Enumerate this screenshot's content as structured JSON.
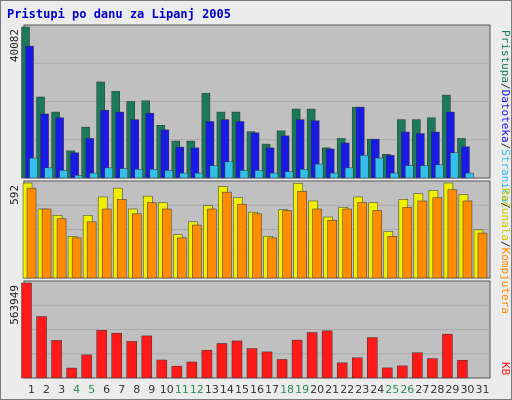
{
  "title": "Pristupi po danu za Lipanj 2005",
  "colors": {
    "panel_bg": "#c0c0c0",
    "gridline": "#a9a9a9",
    "pristupa": "#1a7a5a",
    "datoteka": "#1a1ae6",
    "stranica": "#33c0e8",
    "racunala": "#f0f000",
    "kompjutera": "#ff8c00",
    "kb": "#ff1a1a",
    "day_normal": "#333333",
    "day_weekend": "#2e8b57"
  },
  "right_labels": {
    "top": [
      "Pristupa",
      "/",
      "Datoteka",
      "/",
      "Stranica",
      "/"
    ],
    "top_colors": [
      "#1a7a5a",
      "#333333",
      "#1a1ae6",
      "#333333",
      "#33c0e8",
      "#333333"
    ],
    "mid": [
      "Računala",
      "/",
      "Kompjutera"
    ],
    "mid_colors": [
      "#c8c800",
      "#333333",
      "#ff8c00"
    ],
    "bottom": [
      "KB"
    ],
    "bottom_colors": [
      "#ff1a1a"
    ]
  },
  "chart_data": {
    "type": "bar",
    "title": "Pristupi po danu za Lipanj 2005",
    "categories": [
      "1",
      "2",
      "3",
      "4",
      "5",
      "6",
      "7",
      "8",
      "9",
      "10",
      "11",
      "12",
      "13",
      "14",
      "15",
      "16",
      "17",
      "18",
      "19",
      "20",
      "21",
      "22",
      "23",
      "24",
      "25",
      "26",
      "27",
      "28",
      "29",
      "30",
      "31"
    ],
    "weekend_days": [
      "4",
      "5",
      "11",
      "12",
      "18",
      "19",
      "25",
      "26"
    ],
    "panels": [
      {
        "ymax_label": "40082",
        "ylim": [
          0,
          40082
        ],
        "series": [
          {
            "name": "Pristupa",
            "values": [
              40082,
              21500,
              17500,
              7200,
              13500,
              25500,
              23000,
              20300,
              20500,
              14000,
              9800,
              9800,
              22500,
              17500,
              17500,
              12300,
              9000,
              12500,
              18300,
              18300,
              8000,
              10500,
              18800,
              10300,
              6300,
              15500,
              15500,
              16000,
              22000,
              10500,
              0
            ]
          },
          {
            "name": "Datoteka",
            "values": [
              35000,
              17000,
              16000,
              6700,
              10500,
              18000,
              17500,
              15500,
              17200,
              12800,
              8200,
              8000,
              15000,
              15500,
              15000,
              12000,
              8000,
              11200,
              15500,
              15200,
              7700,
              9300,
              18800,
              10300,
              6000,
              12200,
              11800,
              12200,
              17500,
              8300,
              0
            ]
          },
          {
            "name": "Stranica",
            "values": [
              5300,
              2700,
              2000,
              700,
              1300,
              2700,
              2500,
              2300,
              2300,
              2000,
              1300,
              1300,
              3300,
              4300,
              2000,
              2000,
              1300,
              1700,
              2300,
              3700,
              1300,
              2700,
              6000,
              5300,
              1300,
              3300,
              3300,
              3500,
              6700,
              1300,
              0
            ]
          }
        ]
      },
      {
        "ymax_label": "592",
        "ylim": [
          0,
          592
        ],
        "series": [
          {
            "name": "Računala",
            "values": [
              592,
              430,
              390,
              260,
              390,
              505,
              560,
              430,
              510,
              470,
              270,
              350,
              450,
              570,
              500,
              410,
              260,
              425,
              590,
              480,
              380,
              440,
              505,
              470,
              290,
              490,
              525,
              545,
              592,
              520,
              300
            ]
          },
          {
            "name": "Kompjutera",
            "values": [
              560,
              430,
              370,
              250,
              350,
              430,
              490,
              400,
              470,
              430,
              250,
              330,
              430,
              535,
              460,
              400,
              250,
              420,
              540,
              430,
              360,
              430,
              470,
              420,
              260,
              440,
              480,
              500,
              550,
              480,
              280
            ]
          }
        ]
      },
      {
        "ymax_label": "563949",
        "ylim": [
          0,
          563949
        ],
        "series": [
          {
            "name": "KB",
            "values": [
              563949,
              365000,
              223000,
              59000,
              137000,
              283000,
              266000,
              217000,
              250000,
              107000,
              70000,
              95000,
              165000,
              205000,
              220000,
              175000,
              155000,
              110000,
              225000,
              270000,
              280000,
              90000,
              120000,
              240000,
              60000,
              72000,
              150000,
              115000,
              260000,
              105000,
              0
            ]
          }
        ]
      }
    ],
    "xlabel": "",
    "ylabel": ""
  }
}
